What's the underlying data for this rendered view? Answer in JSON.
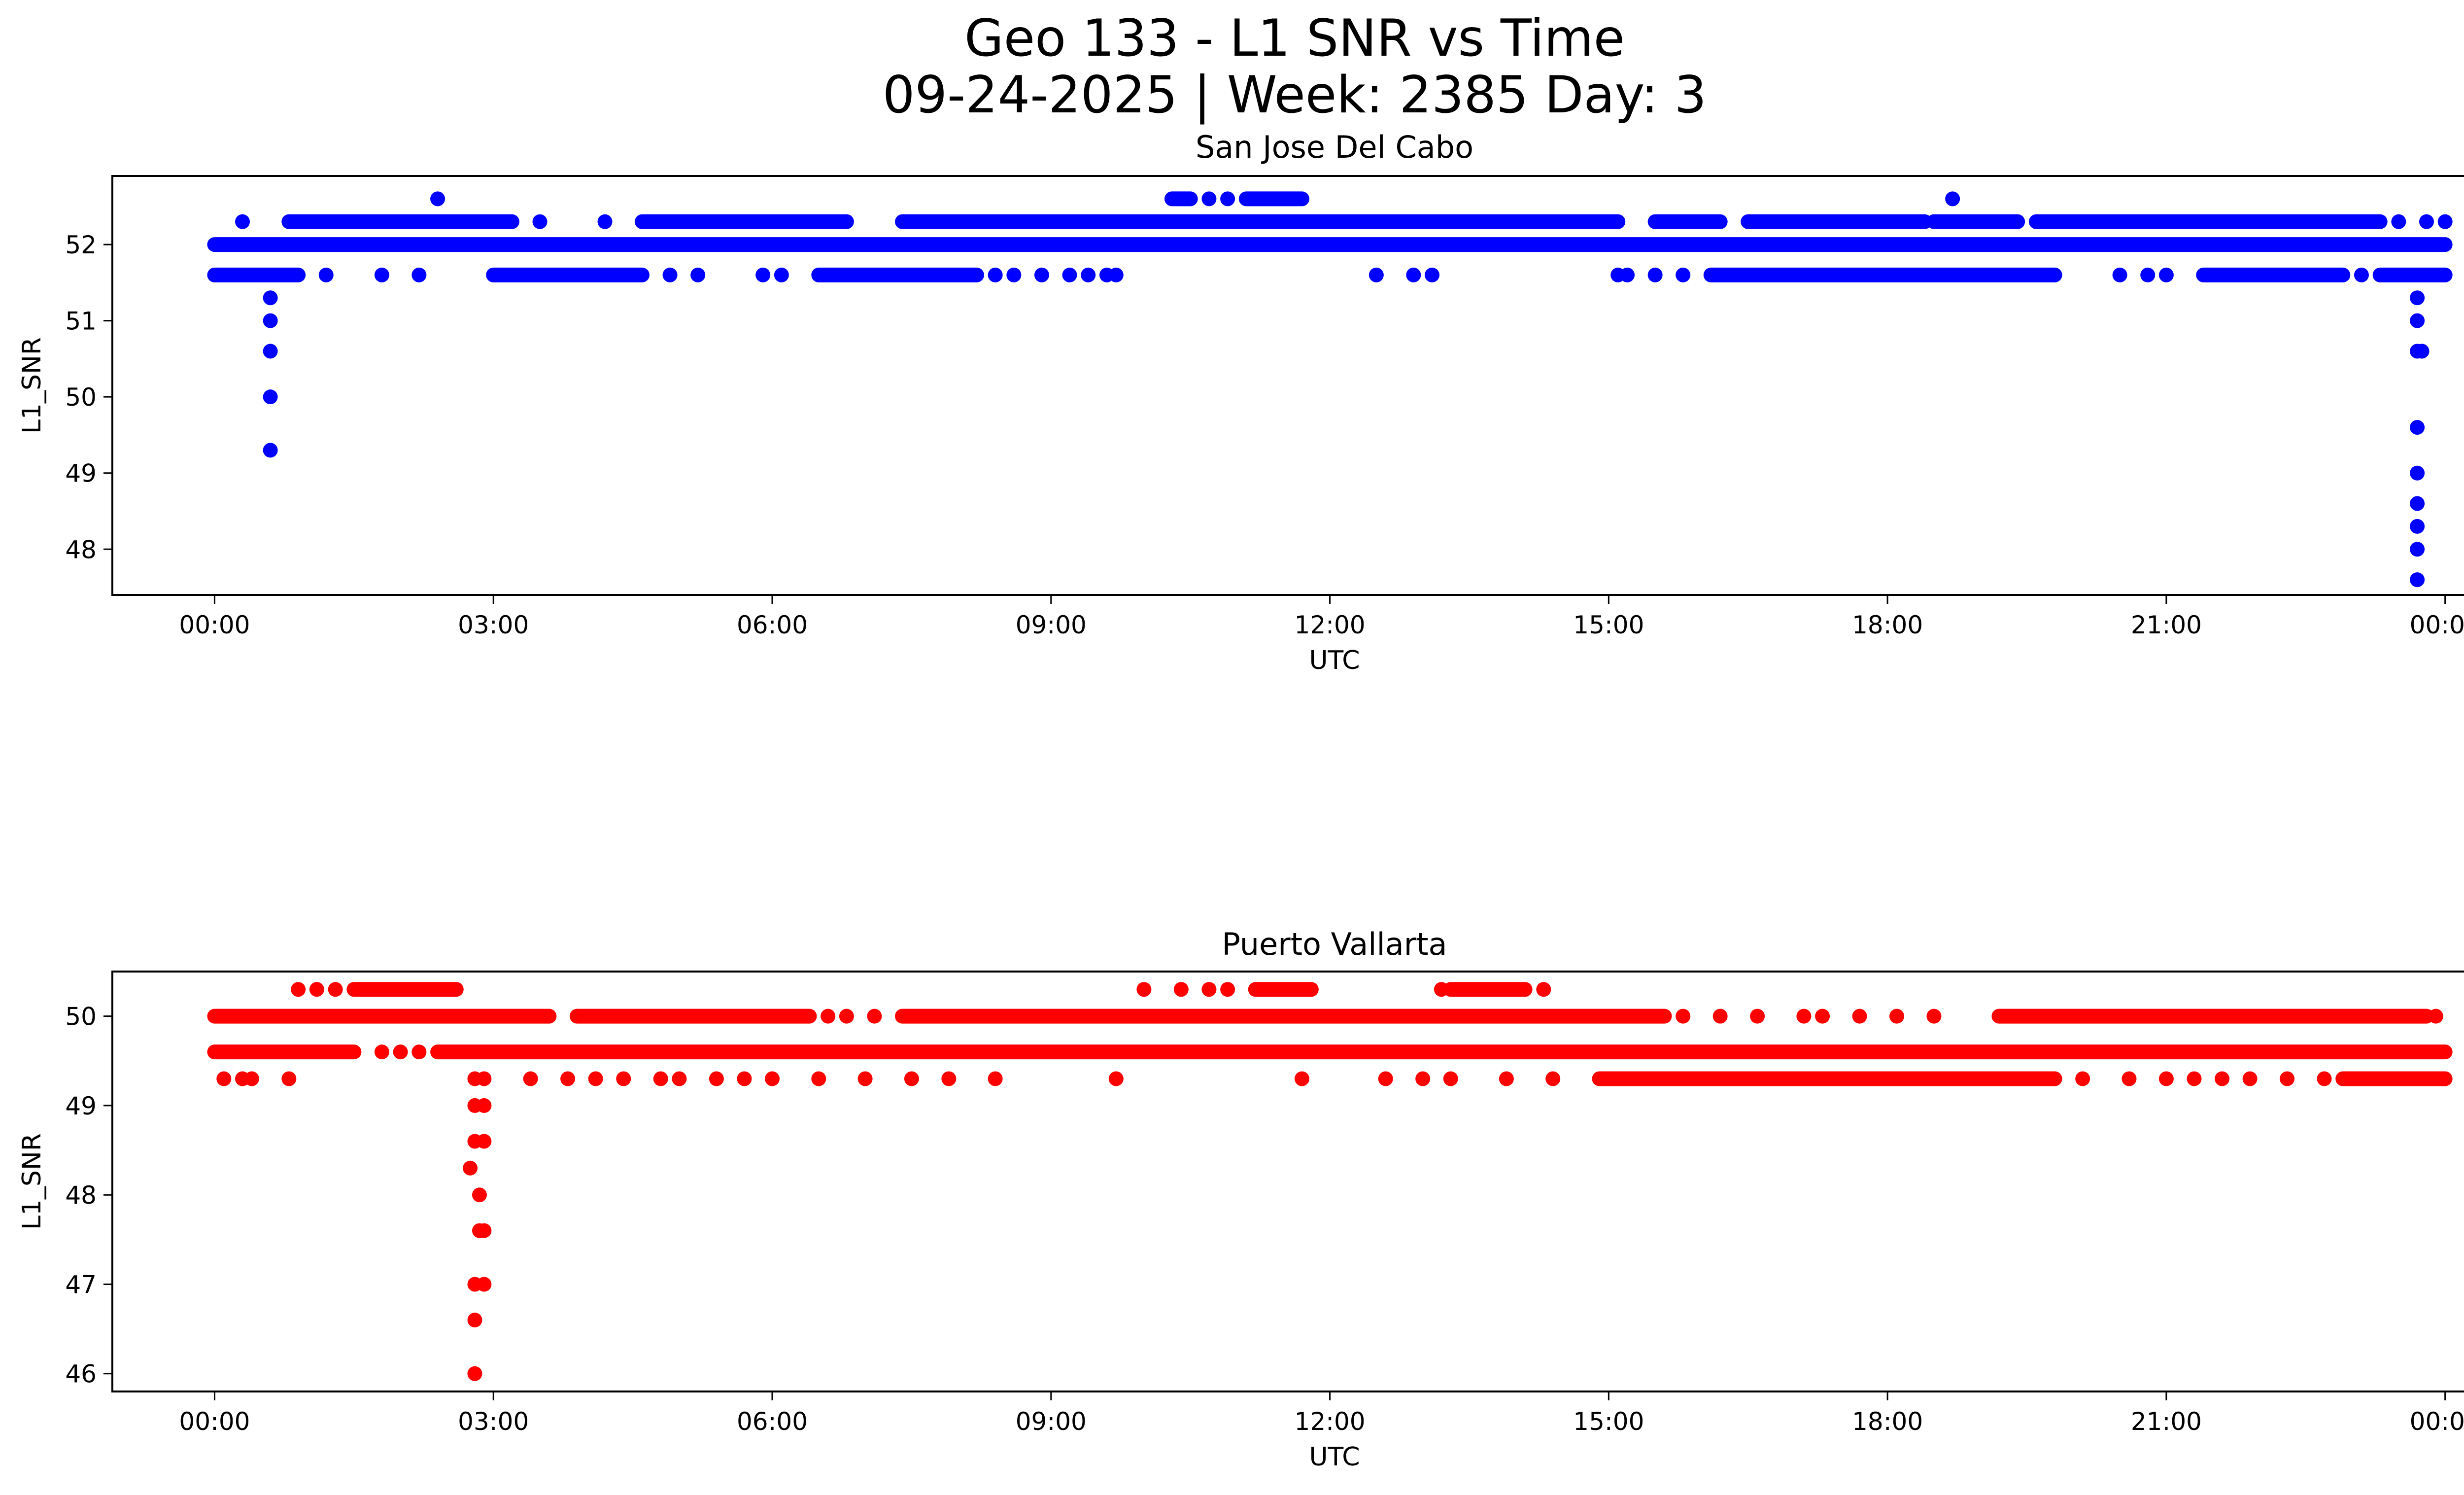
{
  "figure": {
    "title_line1": "Geo 133 - L1 SNR vs Time",
    "title_line2": "09-24-2025 | Week: 2385 Day: 3"
  },
  "chart_data": [
    {
      "type": "scatter",
      "title": "San Jose Del Cabo",
      "xlabel": "UTC",
      "ylabel": "L1_SNR",
      "color": "#0000ff",
      "x_unit": "hours",
      "xlim": [
        -1.1,
        25.2
      ],
      "ylim": [
        47.4,
        52.9
      ],
      "xticks": [
        0,
        3,
        6,
        9,
        12,
        15,
        18,
        21,
        24
      ],
      "xtick_labels": [
        "00:00",
        "03:00",
        "06:00",
        "09:00",
        "12:00",
        "15:00",
        "18:00",
        "21:00",
        "00:00"
      ],
      "yticks": [
        48,
        49,
        50,
        51,
        52
      ],
      "ytick_labels": [
        "48",
        "49",
        "50",
        "51",
        "52"
      ],
      "segments": [
        {
          "y": 52.0,
          "from": 0.0,
          "to": 24.0
        },
        {
          "y": 52.3,
          "from": 0.8,
          "to": 3.2
        },
        {
          "y": 52.3,
          "from": 4.6,
          "to": 6.8
        },
        {
          "y": 52.3,
          "from": 7.4,
          "to": 15.1
        },
        {
          "y": 52.3,
          "from": 15.5,
          "to": 16.2
        },
        {
          "y": 52.3,
          "from": 16.5,
          "to": 18.4
        },
        {
          "y": 52.3,
          "from": 18.5,
          "to": 19.4
        },
        {
          "y": 52.3,
          "from": 19.6,
          "to": 23.3
        },
        {
          "y": 51.6,
          "from": 0.0,
          "to": 0.9
        },
        {
          "y": 51.6,
          "from": 3.0,
          "to": 4.6
        },
        {
          "y": 51.6,
          "from": 6.5,
          "to": 8.2
        },
        {
          "y": 51.6,
          "from": 16.1,
          "to": 19.8
        },
        {
          "y": 51.6,
          "from": 21.4,
          "to": 22.9
        },
        {
          "y": 51.6,
          "from": 23.3,
          "to": 24.0
        },
        {
          "y": 52.6,
          "from": 10.3,
          "to": 10.5
        },
        {
          "y": 52.6,
          "from": 11.1,
          "to": 11.7
        }
      ],
      "points": [
        {
          "x": 0.3,
          "y": 52.3
        },
        {
          "x": 4.2,
          "y": 52.3
        },
        {
          "x": 3.5,
          "y": 52.3
        },
        {
          "x": 2.4,
          "y": 52.6
        },
        {
          "x": 10.7,
          "y": 52.6
        },
        {
          "x": 10.9,
          "y": 52.6
        },
        {
          "x": 18.7,
          "y": 52.6
        },
        {
          "x": 23.5,
          "y": 52.3
        },
        {
          "x": 23.8,
          "y": 52.3
        },
        {
          "x": 24.0,
          "y": 52.3
        },
        {
          "x": 1.2,
          "y": 51.6
        },
        {
          "x": 1.8,
          "y": 51.6
        },
        {
          "x": 2.2,
          "y": 51.6
        },
        {
          "x": 4.9,
          "y": 51.6
        },
        {
          "x": 5.2,
          "y": 51.6
        },
        {
          "x": 5.9,
          "y": 51.6
        },
        {
          "x": 6.1,
          "y": 51.6
        },
        {
          "x": 8.4,
          "y": 51.6
        },
        {
          "x": 8.6,
          "y": 51.6
        },
        {
          "x": 8.9,
          "y": 51.6
        },
        {
          "x": 9.2,
          "y": 51.6
        },
        {
          "x": 9.4,
          "y": 51.6
        },
        {
          "x": 9.6,
          "y": 51.6
        },
        {
          "x": 9.7,
          "y": 51.6
        },
        {
          "x": 12.5,
          "y": 51.6
        },
        {
          "x": 12.9,
          "y": 51.6
        },
        {
          "x": 13.1,
          "y": 51.6
        },
        {
          "x": 15.1,
          "y": 51.6
        },
        {
          "x": 15.2,
          "y": 51.6
        },
        {
          "x": 15.5,
          "y": 51.6
        },
        {
          "x": 15.8,
          "y": 51.6
        },
        {
          "x": 20.5,
          "y": 51.6
        },
        {
          "x": 20.8,
          "y": 51.6
        },
        {
          "x": 21.0,
          "y": 51.6
        },
        {
          "x": 23.1,
          "y": 51.6
        },
        {
          "x": 0.6,
          "y": 51.3
        },
        {
          "x": 0.6,
          "y": 51.0
        },
        {
          "x": 0.6,
          "y": 50.6
        },
        {
          "x": 0.6,
          "y": 50.0
        },
        {
          "x": 0.6,
          "y": 49.3
        },
        {
          "x": 23.7,
          "y": 51.3
        },
        {
          "x": 23.7,
          "y": 51.0
        },
        {
          "x": 23.7,
          "y": 50.6
        },
        {
          "x": 23.75,
          "y": 50.6
        },
        {
          "x": 23.7,
          "y": 49.6
        },
        {
          "x": 23.7,
          "y": 49.0
        },
        {
          "x": 23.7,
          "y": 48.6
        },
        {
          "x": 23.7,
          "y": 48.3
        },
        {
          "x": 23.7,
          "y": 48.0
        },
        {
          "x": 23.7,
          "y": 47.6
        }
      ]
    },
    {
      "type": "scatter",
      "title": "Puerto Vallarta",
      "xlabel": "UTC",
      "ylabel": "L1_SNR",
      "color": "#ff0000",
      "x_unit": "hours",
      "xlim": [
        -1.1,
        25.2
      ],
      "ylim": [
        45.8,
        50.5
      ],
      "xticks": [
        0,
        3,
        6,
        9,
        12,
        15,
        18,
        21,
        24
      ],
      "xtick_labels": [
        "00:00",
        "03:00",
        "06:00",
        "09:00",
        "12:00",
        "15:00",
        "18:00",
        "21:00",
        "00:00"
      ],
      "yticks": [
        46,
        47,
        48,
        49,
        50
      ],
      "ytick_labels": [
        "46",
        "47",
        "48",
        "49",
        "50"
      ],
      "segments": [
        {
          "y": 49.6,
          "from": 0.0,
          "to": 1.5
        },
        {
          "y": 49.6,
          "from": 2.4,
          "to": 24.0
        },
        {
          "y": 50.0,
          "from": 0.0,
          "to": 3.6
        },
        {
          "y": 50.0,
          "from": 3.9,
          "to": 6.4
        },
        {
          "y": 50.0,
          "from": 7.4,
          "to": 15.6
        },
        {
          "y": 50.0,
          "from": 19.2,
          "to": 23.8
        },
        {
          "y": 50.3,
          "from": 1.5,
          "to": 2.6
        },
        {
          "y": 50.3,
          "from": 11.2,
          "to": 11.8
        },
        {
          "y": 50.3,
          "from": 13.3,
          "to": 14.1
        },
        {
          "y": 49.3,
          "from": 14.9,
          "to": 19.8
        },
        {
          "y": 49.3,
          "from": 22.9,
          "to": 24.0
        }
      ],
      "points": [
        {
          "x": 0.9,
          "y": 50.3
        },
        {
          "x": 1.1,
          "y": 50.3
        },
        {
          "x": 1.3,
          "y": 50.3
        },
        {
          "x": 10.0,
          "y": 50.3
        },
        {
          "x": 10.4,
          "y": 50.3
        },
        {
          "x": 10.7,
          "y": 50.3
        },
        {
          "x": 10.9,
          "y": 50.3
        },
        {
          "x": 13.2,
          "y": 50.3
        },
        {
          "x": 14.3,
          "y": 50.3
        },
        {
          "x": 6.6,
          "y": 50.0
        },
        {
          "x": 6.8,
          "y": 50.0
        },
        {
          "x": 7.1,
          "y": 50.0
        },
        {
          "x": 15.8,
          "y": 50.0
        },
        {
          "x": 16.2,
          "y": 50.0
        },
        {
          "x": 16.6,
          "y": 50.0
        },
        {
          "x": 17.1,
          "y": 50.0
        },
        {
          "x": 17.3,
          "y": 50.0
        },
        {
          "x": 17.7,
          "y": 50.0
        },
        {
          "x": 18.1,
          "y": 50.0
        },
        {
          "x": 18.5,
          "y": 50.0
        },
        {
          "x": 23.9,
          "y": 50.0
        },
        {
          "x": 1.8,
          "y": 49.6
        },
        {
          "x": 2.0,
          "y": 49.6
        },
        {
          "x": 2.2,
          "y": 49.6
        },
        {
          "x": 0.1,
          "y": 49.3
        },
        {
          "x": 0.3,
          "y": 49.3
        },
        {
          "x": 0.4,
          "y": 49.3
        },
        {
          "x": 0.8,
          "y": 49.3
        },
        {
          "x": 3.4,
          "y": 49.3
        },
        {
          "x": 3.8,
          "y": 49.3
        },
        {
          "x": 4.1,
          "y": 49.3
        },
        {
          "x": 4.4,
          "y": 49.3
        },
        {
          "x": 4.8,
          "y": 49.3
        },
        {
          "x": 5.0,
          "y": 49.3
        },
        {
          "x": 5.4,
          "y": 49.3
        },
        {
          "x": 5.7,
          "y": 49.3
        },
        {
          "x": 6.0,
          "y": 49.3
        },
        {
          "x": 6.5,
          "y": 49.3
        },
        {
          "x": 7.0,
          "y": 49.3
        },
        {
          "x": 7.5,
          "y": 49.3
        },
        {
          "x": 7.9,
          "y": 49.3
        },
        {
          "x": 8.4,
          "y": 49.3
        },
        {
          "x": 9.7,
          "y": 49.3
        },
        {
          "x": 11.7,
          "y": 49.3
        },
        {
          "x": 12.6,
          "y": 49.3
        },
        {
          "x": 13.0,
          "y": 49.3
        },
        {
          "x": 13.3,
          "y": 49.3
        },
        {
          "x": 13.9,
          "y": 49.3
        },
        {
          "x": 14.4,
          "y": 49.3
        },
        {
          "x": 20.1,
          "y": 49.3
        },
        {
          "x": 20.6,
          "y": 49.3
        },
        {
          "x": 21.0,
          "y": 49.3
        },
        {
          "x": 21.3,
          "y": 49.3
        },
        {
          "x": 21.6,
          "y": 49.3
        },
        {
          "x": 21.9,
          "y": 49.3
        },
        {
          "x": 22.3,
          "y": 49.3
        },
        {
          "x": 22.7,
          "y": 49.3
        },
        {
          "x": 2.8,
          "y": 49.3
        },
        {
          "x": 2.9,
          "y": 49.3
        },
        {
          "x": 2.8,
          "y": 49.0
        },
        {
          "x": 2.9,
          "y": 49.0
        },
        {
          "x": 2.8,
          "y": 48.6
        },
        {
          "x": 2.9,
          "y": 48.6
        },
        {
          "x": 2.75,
          "y": 48.3
        },
        {
          "x": 2.85,
          "y": 48.0
        },
        {
          "x": 2.85,
          "y": 47.6
        },
        {
          "x": 2.9,
          "y": 47.6
        },
        {
          "x": 2.8,
          "y": 47.0
        },
        {
          "x": 2.9,
          "y": 47.0
        },
        {
          "x": 2.8,
          "y": 46.6
        },
        {
          "x": 2.8,
          "y": 46.0
        }
      ]
    }
  ]
}
